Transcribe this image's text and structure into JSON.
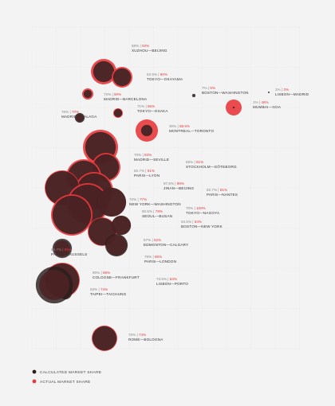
{
  "colors": {
    "background": "#f3f3f3",
    "calculated": "#2b1e1e",
    "actual": "#e8393d",
    "grid": "#dddddd",
    "label_route": "#333333",
    "label_calc": "#888888"
  },
  "legend": {
    "calculated": "CALCULATED MARKET SHARE",
    "actual": "ACTUAL MARKET SHARE"
  },
  "chart_data": {
    "type": "scatter",
    "grid": true,
    "legend_position": "bottom-left",
    "series": [
      {
        "name": "CALCULATED MARKET SHARE"
      },
      {
        "name": "ACTUAL MARKET SHARE"
      }
    ],
    "points": [
      {
        "route": "XUZHOU—BEIJING",
        "calc": "68%",
        "actual": "93%"
      },
      {
        "route": "TOKYO—OKAYAMA",
        "calc": "53.5%",
        "actual": "60%"
      },
      {
        "route": "BOSTON—WASHINGTON",
        "calc": "7%",
        "actual": "5%"
      },
      {
        "route": "LISBON—MADRID",
        "calc": "1%",
        "actual": "3%"
      },
      {
        "route": "MADRID—BARCELONA",
        "calc": "72%",
        "actual": "50%"
      },
      {
        "route": "MUMBAI—GOA",
        "calc": "1%",
        "actual": "46%"
      },
      {
        "route": "TOKYO—OSAKA",
        "calc": "71%",
        "actual": "86%"
      },
      {
        "route": "MADRID—MALAGA",
        "calc": "76%",
        "actual": "70%"
      },
      {
        "route": "MONTREAL—TORONTO",
        "calc": "30%",
        "actual": "68.5%"
      },
      {
        "route": "MADRID—SEVILLE",
        "calc": "70%",
        "actual": "83%"
      },
      {
        "route": "STOCKHOLM—GÖTEBORG",
        "calc": "65%",
        "actual": "61%"
      },
      {
        "route": "PARIS—LYON",
        "calc": "82.7%",
        "actual": "91%"
      },
      {
        "route": "JINAN—BEIJING",
        "calc": "87.5%",
        "actual": "98%"
      },
      {
        "route": "PARIS—NANTES",
        "calc": "82.7%",
        "actual": "81%"
      },
      {
        "route": "NEW YORK—WASHINGTON",
        "calc": "70%",
        "actual": "77%"
      },
      {
        "route": "TOKYO—NAGOYA",
        "calc": "70%",
        "actual": "100%"
      },
      {
        "route": "SEOUL—BUSAN",
        "calc": "80.5%",
        "actual": "78%"
      },
      {
        "route": "BOSTON—NEW YORK",
        "calc": "53.5%",
        "actual": "54%"
      },
      {
        "route": "EDMONTON—CALGARY",
        "calc": "57%",
        "actual": "52%"
      },
      {
        "route": "PARIS—BRUSSELS",
        "calc": "89.7%",
        "actual": "85%"
      },
      {
        "route": "PARIS—LONDON",
        "calc": "79%",
        "actual": "85%"
      },
      {
        "route": "COLOGNE—FRANKFURT",
        "calc": "90%",
        "actual": "96%"
      },
      {
        "route": "LISBON—PORTO",
        "calc": "73.5%",
        "actual": "63%"
      },
      {
        "route": "TAIPEI—TAICHUNG",
        "calc": "93%",
        "actual": "74%"
      },
      {
        "route": "ROME—BOLOGNA",
        "calc": "70%",
        "actual": "74%"
      }
    ]
  }
}
